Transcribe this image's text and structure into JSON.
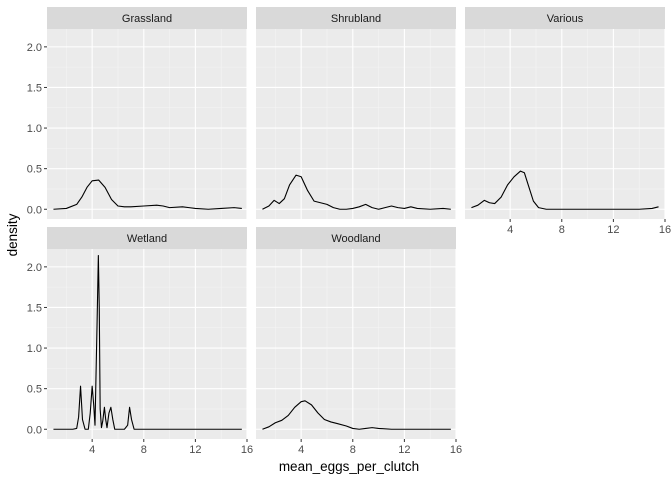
{
  "chart_data": {
    "type": "line",
    "subtype": "faceted-density",
    "xlabel": "mean_eggs_per_clutch",
    "ylabel": "density",
    "xlim": [
      0.5,
      16.0
    ],
    "ylim": [
      -0.12,
      2.22
    ],
    "x_ticks": [
      4,
      8,
      12,
      16
    ],
    "x_tick_labels": [
      "4",
      "8",
      "12",
      "16"
    ],
    "y_ticks": [
      0.0,
      0.5,
      1.0,
      1.5,
      2.0
    ],
    "y_tick_labels": [
      "0.0",
      "0.5",
      "1.0",
      "1.5",
      "2.0"
    ],
    "grid": true,
    "facets": [
      {
        "label": "Grassland",
        "x": [
          1.0,
          2.0,
          2.8,
          3.2,
          3.6,
          4.0,
          4.5,
          5.0,
          5.5,
          6.0,
          6.5,
          7.0,
          8.0,
          9.0,
          9.5,
          10.0,
          11.0,
          11.5,
          12.0,
          13.0,
          14.0,
          15.0,
          15.6
        ],
        "y": [
          0.0,
          0.01,
          0.06,
          0.15,
          0.27,
          0.35,
          0.36,
          0.27,
          0.12,
          0.04,
          0.03,
          0.03,
          0.04,
          0.05,
          0.04,
          0.02,
          0.03,
          0.02,
          0.01,
          0.0,
          0.01,
          0.02,
          0.01
        ]
      },
      {
        "label": "Shrubland",
        "x": [
          1.0,
          1.5,
          1.9,
          2.3,
          2.7,
          3.1,
          3.6,
          4.0,
          4.5,
          5.0,
          5.5,
          6.0,
          6.5,
          7.0,
          7.5,
          8.0,
          8.5,
          9.0,
          9.5,
          10.0,
          10.5,
          11.0,
          11.5,
          12.0,
          12.5,
          13.0,
          14.0,
          15.0,
          15.6
        ],
        "y": [
          0.0,
          0.04,
          0.11,
          0.07,
          0.13,
          0.3,
          0.42,
          0.4,
          0.23,
          0.1,
          0.08,
          0.06,
          0.02,
          0.0,
          0.0,
          0.01,
          0.03,
          0.06,
          0.02,
          0.0,
          0.02,
          0.04,
          0.02,
          0.01,
          0.03,
          0.01,
          0.0,
          0.01,
          0.0
        ]
      },
      {
        "label": "Various",
        "x": [
          1.0,
          1.5,
          2.0,
          2.4,
          2.8,
          3.3,
          3.8,
          4.3,
          4.8,
          5.1,
          5.4,
          5.8,
          6.2,
          6.8,
          8.0,
          10.0,
          12.0,
          14.0,
          15.0,
          15.5
        ],
        "y": [
          0.02,
          0.05,
          0.11,
          0.08,
          0.07,
          0.15,
          0.3,
          0.4,
          0.47,
          0.45,
          0.3,
          0.1,
          0.02,
          0.0,
          0.0,
          0.0,
          0.0,
          0.0,
          0.01,
          0.03
        ]
      },
      {
        "label": "Wetland",
        "x": [
          1.0,
          2.5,
          2.8,
          2.95,
          3.1,
          3.25,
          3.45,
          3.7,
          3.85,
          4.0,
          4.12,
          4.22,
          4.38,
          4.48,
          4.55,
          4.62,
          4.72,
          4.82,
          4.95,
          5.05,
          5.15,
          5.3,
          5.45,
          5.6,
          5.75,
          6.5,
          6.75,
          6.9,
          7.05,
          7.25,
          8.0,
          10.0,
          12.0,
          15.6
        ],
        "y": [
          0.0,
          0.0,
          0.01,
          0.15,
          0.53,
          0.12,
          0.0,
          0.0,
          0.2,
          0.53,
          0.3,
          0.05,
          1.3,
          2.14,
          1.5,
          0.25,
          0.02,
          0.1,
          0.27,
          0.12,
          0.02,
          0.2,
          0.27,
          0.12,
          0.0,
          0.0,
          0.05,
          0.27,
          0.12,
          0.0,
          0.0,
          0.0,
          0.0,
          0.0
        ]
      },
      {
        "label": "Woodland",
        "x": [
          1.0,
          1.5,
          2.0,
          2.5,
          3.0,
          3.5,
          4.0,
          4.3,
          4.8,
          5.3,
          5.8,
          6.3,
          6.8,
          7.5,
          8.0,
          8.5,
          9.0,
          9.5,
          10.0,
          11.0,
          12.0,
          14.0,
          15.6
        ],
        "y": [
          0.0,
          0.03,
          0.08,
          0.11,
          0.17,
          0.27,
          0.34,
          0.35,
          0.3,
          0.2,
          0.12,
          0.09,
          0.07,
          0.04,
          0.01,
          0.0,
          0.01,
          0.02,
          0.01,
          0.0,
          0.0,
          0.0,
          0.0
        ]
      }
    ]
  }
}
